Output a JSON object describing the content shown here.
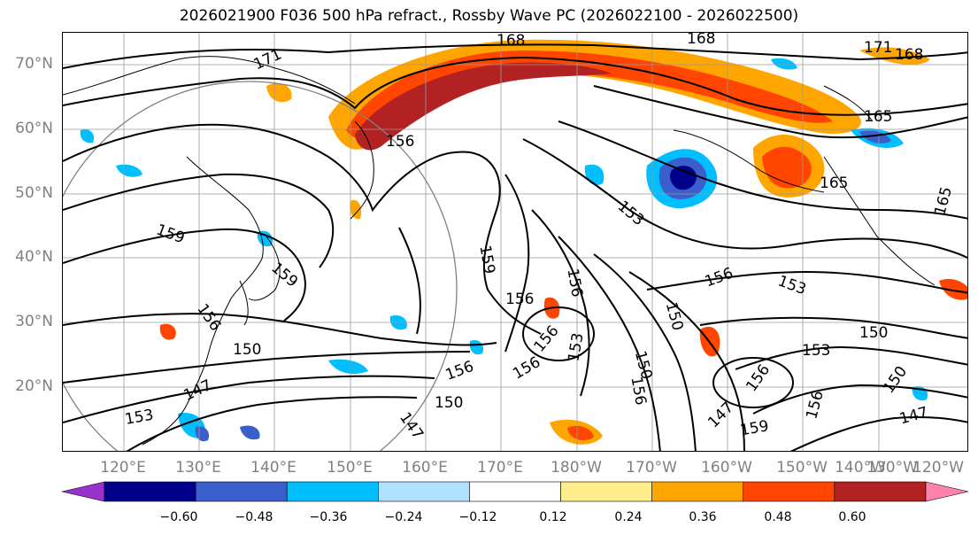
{
  "title": "2026021900 F036 500 hPa refract., Rossby Wave PC (2026022100 - 2026022500)",
  "map": {
    "lat_labels": [
      "70°N",
      "60°N",
      "50°N",
      "40°N",
      "30°N",
      "20°N"
    ],
    "lon_labels": [
      "120°E",
      "130°E",
      "140°E",
      "150°E",
      "160°E",
      "170°E",
      "180°W",
      "170°W",
      "160°W",
      "150°W",
      "140°W",
      "130°W",
      "120°W"
    ],
    "gridlines": true
  },
  "contour_labels": [
    "168",
    "168",
    "171",
    "168",
    "171",
    "165",
    "156",
    "165",
    "165",
    "159",
    "159",
    "153",
    "159",
    "156",
    "156",
    "156",
    "153",
    "156",
    "150",
    "150",
    "153",
    "150",
    "150",
    "156",
    "147",
    "156",
    "150",
    "156",
    "156",
    "156",
    "153",
    "147",
    "150",
    "147",
    "159",
    "147",
    "153",
    "156"
  ],
  "colorbar": {
    "ticks": [
      "−0.60",
      "−0.48",
      "−0.36",
      "−0.24",
      "−0.12",
      "0.12",
      "0.24",
      "0.36",
      "0.48",
      "0.60"
    ],
    "colors": [
      "#9932cc",
      "#00008b",
      "#3a5fcd",
      "#00bfff",
      "#b0e2ff",
      "#ffffff",
      "#ffec8b",
      "#ffa500",
      "#ff4500",
      "#b22222",
      "#ff82ab"
    ]
  }
}
